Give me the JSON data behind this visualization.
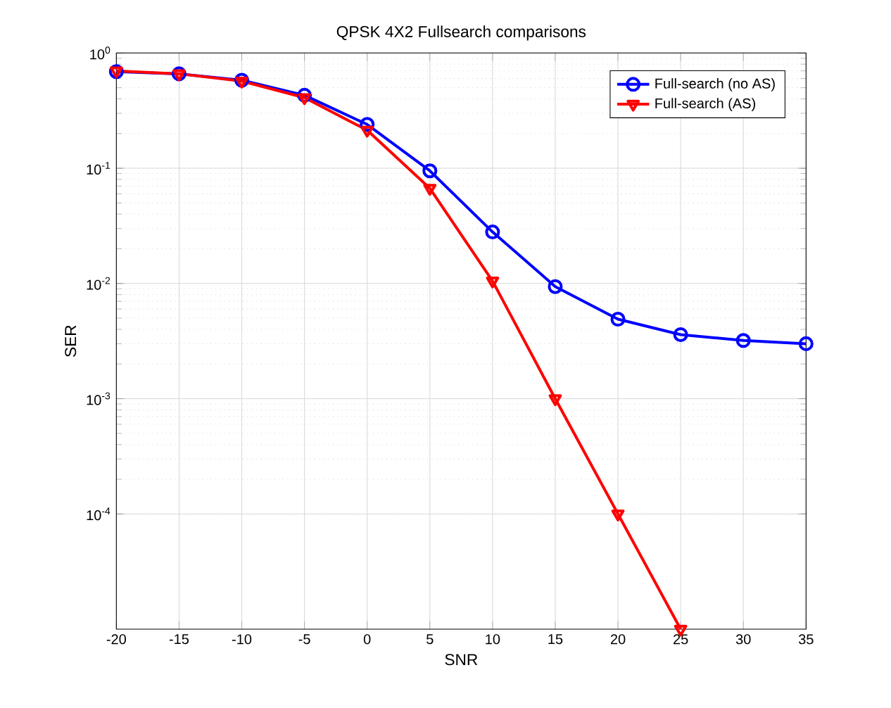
{
  "chart_data": {
    "type": "line",
    "title": "QPSK 4X2 Fullsearch comparisons",
    "xlabel": "SNR",
    "ylabel": "SER",
    "x": [
      -20,
      -15,
      -10,
      -5,
      0,
      5,
      10,
      15,
      20,
      25,
      30,
      35
    ],
    "series": [
      {
        "name": "Full-search (no AS)",
        "color": "#0000ff",
        "marker": "circle",
        "values": [
          0.69,
          0.66,
          0.58,
          0.43,
          0.24,
          0.095,
          0.028,
          0.0094,
          0.0049,
          0.0036,
          0.0032,
          0.003
        ]
      },
      {
        "name": "Full-search (AS)",
        "color": "#ff0000",
        "marker": "triangle",
        "values": [
          0.7,
          0.66,
          0.57,
          0.41,
          0.214,
          0.067,
          0.0105,
          0.001,
          0.0001,
          1e-05,
          null,
          null
        ]
      }
    ],
    "log": "y",
    "xlim": [
      -20,
      35
    ],
    "ylim": [
      1e-05,
      1
    ],
    "xticks": [
      -20,
      -15,
      -10,
      -5,
      0,
      5,
      10,
      15,
      20,
      25,
      30,
      35
    ],
    "yticks": [
      {
        "value": 0.0001,
        "label": "10$^{-4}$"
      },
      {
        "value": 0.001,
        "label": "10$^{-3}$"
      },
      {
        "value": 0.01,
        "label": "10$^{-2}$"
      },
      {
        "value": 0.1,
        "label": "10$^{-1}$"
      },
      {
        "value": 1,
        "label": "10$^{0}$"
      }
    ],
    "grid": true,
    "legend": "top right",
    "line_style": "solid"
  }
}
